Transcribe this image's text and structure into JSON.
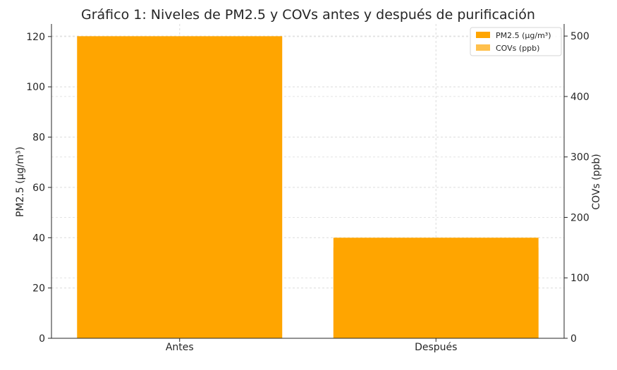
{
  "chart_data": {
    "type": "bar",
    "title": "Gráfico 1: Niveles de PM2.5 y COVs antes y después de purificación",
    "categories": [
      "Antes",
      "Después"
    ],
    "series": [
      {
        "name": "PM2.5 (μg/m³)",
        "axis": "left",
        "values": [
          120,
          40
        ],
        "color": "#ffa500"
      },
      {
        "name": "COVs (ppb)",
        "axis": "right",
        "values": [
          500,
          150
        ],
        "color": "#ffa500"
      }
    ],
    "ylabel_left": "PM2.5 (μg/m³)",
    "ylabel_right": "COVs (ppb)",
    "ylim_left": [
      0,
      125
    ],
    "ylim_right": [
      0,
      520
    ],
    "yticks_left": [
      "0",
      "20",
      "40",
      "60",
      "80",
      "100",
      "120"
    ],
    "yticks_right": [
      "0",
      "100",
      "200",
      "300",
      "400",
      "500"
    ],
    "grid": true,
    "legend_position": "top-right"
  }
}
